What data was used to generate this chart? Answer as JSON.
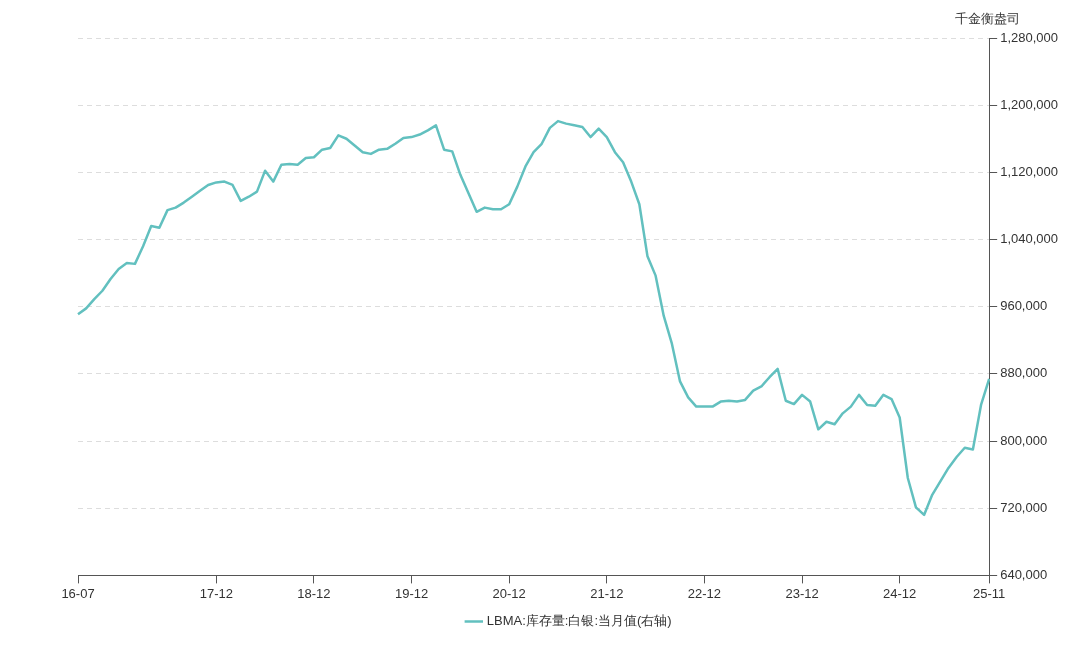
{
  "chart_data": {
    "type": "line",
    "ylabel": "千金衡盎司",
    "ylim": [
      640000,
      1280000
    ],
    "yticks": [
      {
        "value": 640000,
        "label": "640,000"
      },
      {
        "value": 720000,
        "label": "720,000"
      },
      {
        "value": 800000,
        "label": "800,000"
      },
      {
        "value": 880000,
        "label": "880,000"
      },
      {
        "value": 960000,
        "label": "960,000"
      },
      {
        "value": 1040000,
        "label": "1,040,000"
      },
      {
        "value": 1120000,
        "label": "1,120,000"
      },
      {
        "value": 1200000,
        "label": "1,200,000"
      },
      {
        "value": 1280000,
        "label": "1,280,000"
      }
    ],
    "grid": "y",
    "legend": "bottom",
    "marker": "none",
    "line_style": "solid",
    "categories": [
      "16-07",
      null,
      null,
      null,
      null,
      null,
      null,
      null,
      null,
      null,
      null,
      null,
      null,
      null,
      null,
      null,
      null,
      "17-12",
      null,
      null,
      null,
      null,
      null,
      null,
      null,
      null,
      null,
      null,
      null,
      "18-12",
      null,
      null,
      null,
      null,
      null,
      null,
      null,
      null,
      null,
      null,
      null,
      "19-12",
      null,
      null,
      null,
      null,
      null,
      null,
      null,
      null,
      null,
      null,
      null,
      "20-12",
      null,
      null,
      null,
      null,
      null,
      null,
      null,
      null,
      null,
      null,
      null,
      "21-12",
      null,
      null,
      null,
      null,
      null,
      null,
      null,
      null,
      null,
      null,
      null,
      "22-12",
      null,
      null,
      null,
      null,
      null,
      null,
      null,
      null,
      null,
      null,
      null,
      "23-12",
      null,
      null,
      null,
      null,
      null,
      null,
      null,
      null,
      null,
      null,
      null,
      "24-12",
      null,
      null,
      null,
      null,
      null,
      null,
      null,
      null,
      null,
      null,
      "25-11"
    ],
    "series": [
      {
        "name": "LBMA:库存量:白银:当月值(右轴)",
        "color": "#62c0bf",
        "values": [
          951000,
          958000,
          969000,
          979000,
          993000,
          1005000,
          1012000,
          1011000,
          1032000,
          1056000,
          1054000,
          1075000,
          1078000,
          1084000,
          1091000,
          1098000,
          1105000,
          1108000,
          1109000,
          1105000,
          1086000,
          1091000,
          1097000,
          1122000,
          1109000,
          1129000,
          1130000,
          1129000,
          1137000,
          1138000,
          1147000,
          1149000,
          1164000,
          1160000,
          1152000,
          1144000,
          1142000,
          1147000,
          1148000,
          1154000,
          1161000,
          1162000,
          1165000,
          1170000,
          1176000,
          1147000,
          1145000,
          1117000,
          1095000,
          1073000,
          1078000,
          1076000,
          1076000,
          1082000,
          1103000,
          1127000,
          1144000,
          1154000,
          1173000,
          1181000,
          1178000,
          1176000,
          1174000,
          1162000,
          1172000,
          1162000,
          1144000,
          1132000,
          1109000,
          1082000,
          1020000,
          997000,
          949000,
          916000,
          871000,
          852000,
          841000,
          841000,
          841000,
          847000,
          848000,
          847000,
          849000,
          860000,
          865000,
          876000,
          886000,
          848000,
          844000,
          855000,
          847000,
          814000,
          823000,
          820000,
          833000,
          841000,
          855000,
          843000,
          842000,
          855000,
          850000,
          828000,
          756000,
          721000,
          712000,
          736000,
          752000,
          768000,
          781000,
          792000,
          790000,
          843000,
          874000
        ]
      }
    ]
  }
}
